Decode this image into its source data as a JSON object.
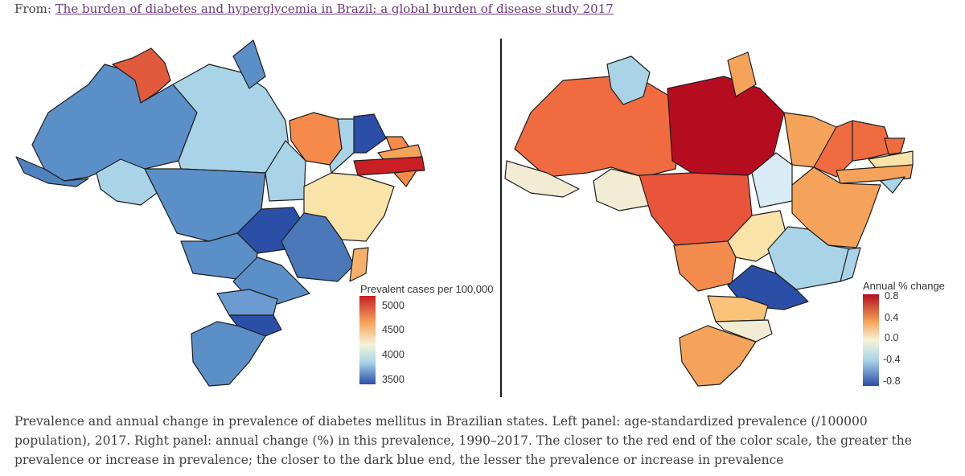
{
  "header": {
    "prefix": "From:",
    "link_text": "The burden of diabetes and hyperglycemia in Brazil: a global burden of disease study 2017"
  },
  "left_map": {
    "legend_title": "Prevalent cases per 100,000",
    "ticks": [
      "5000",
      "4500",
      "4000",
      "3500"
    ],
    "colors": {
      "high": "#c81e24",
      "mid_high": "#f5a35a",
      "mid": "#f7f3d8",
      "mid_low": "#a9d4e8",
      "low": "#2b4ea6"
    }
  },
  "right_map": {
    "legend_title": "Annual % change",
    "ticks": [
      "0.8",
      "0.4",
      "0.0",
      "-0.4",
      "-0.8"
    ],
    "colors": {
      "high": "#b50c1f",
      "mid_high": "#f5a35a",
      "mid": "#f7f3d8",
      "mid_low": "#a9d4e8",
      "low": "#2b4ea6"
    }
  },
  "caption": "Prevalence and annual change in prevalence of diabetes mellitus in Brazilian states. Left panel: age-standardized prevalence (/100000 population), 2017. Right panel: annual change (%) in this prevalence, 1990–2017. The closer to the red end of the color scale, the greater the prevalence or increase in prevalence; the closer to the dark blue end, the lesser the prevalence or increase in prevalence"
}
